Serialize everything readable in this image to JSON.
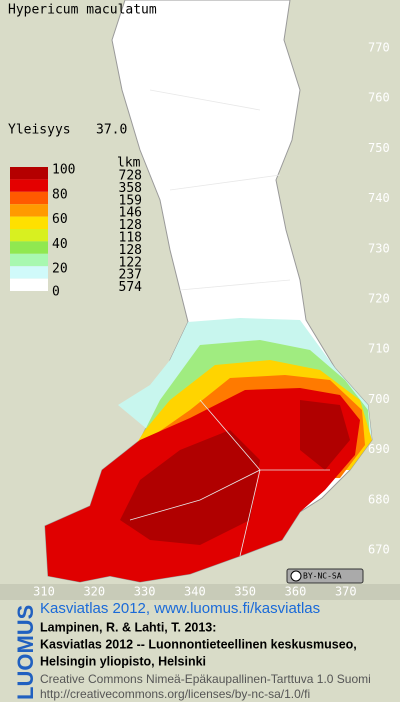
{
  "title": "Hypericum maculatum",
  "frequency": {
    "label": "Yleisyys",
    "value": "37.0"
  },
  "legend": {
    "levels": [
      100,
      80,
      60,
      40,
      20,
      0
    ],
    "count_header": "lkm",
    "counts": [
      728,
      358,
      159,
      146,
      128,
      118,
      128,
      122,
      237,
      574
    ],
    "colors": [
      "#b40000",
      "#e40000",
      "#ff5a00",
      "#ff9a00",
      "#ffe000",
      "#d8f020",
      "#90e850",
      "#a8f8b0",
      "#d0fafa",
      "#ffffff"
    ]
  },
  "y_labels": [
    770,
    760,
    750,
    740,
    730,
    720,
    710,
    700,
    690,
    680,
    670
  ],
  "x_labels": [
    310,
    320,
    330,
    340,
    350,
    360,
    370
  ],
  "license_badge": "BY-NC-SA",
  "footer": {
    "brand": "LUOMUS",
    "link": "Kasviatlas 2012, www.luomus.fi/kasviatlas",
    "citation": [
      "Lampinen, R. & Lahti, T. 2013:",
      "Kasviatlas 2012 -- Luonnontieteellinen keskusmuseo,",
      "Helsingin yliopisto, Helsinki"
    ],
    "license": [
      "Creative Commons Nimeä-Epäkaupallinen-Tarttuva 1.0 Suomi",
      "http://creativecommons.org/licenses/by-nc-sa/1.0/fi"
    ]
  }
}
